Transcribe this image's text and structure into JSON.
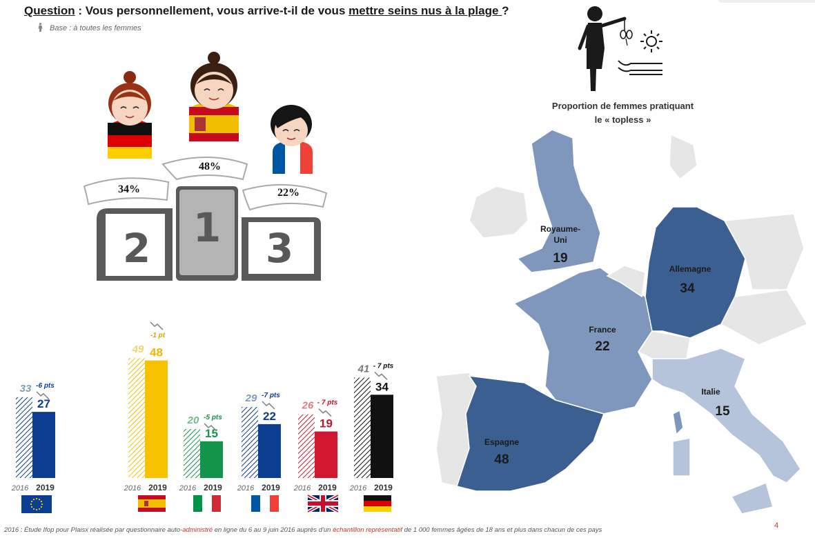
{
  "question": {
    "label": "Question",
    "text_part1": " : Vous personnellement, vous arrive-t-il de vous ",
    "text_underlined": "mettre seins nus à la plage ",
    "text_end": "?"
  },
  "base": "Base : à toutes les femmes",
  "podium": [
    {
      "rank": "1",
      "value": "48%",
      "country": "Espagne",
      "flag": "spain-flag"
    },
    {
      "rank": "2",
      "value": "34%",
      "country": "Allemagne",
      "flag": "germany-flag"
    },
    {
      "rank": "3",
      "value": "22%",
      "country": "France",
      "flag": "france-flag"
    }
  ],
  "map": {
    "title_line1": "Proportion de femmes pratiquant",
    "title_line2": "le « topless »",
    "countries": [
      {
        "name_line1": "Royaume-",
        "name_line2": "Uni",
        "value": "19",
        "color": "#7f97bd"
      },
      {
        "name": "Allemagne",
        "value": "34",
        "color": "#3b5f91"
      },
      {
        "name": "France",
        "value": "22",
        "color": "#7f97bd"
      },
      {
        "name": "Italie",
        "value": "15",
        "color": "#b6c4db"
      },
      {
        "name": "Espagne",
        "value": "48",
        "color": "#3b5f91"
      }
    ]
  },
  "chart_data": {
    "type": "bar",
    "categories": [
      "Europe",
      "Espagne",
      "Italie",
      "France",
      "Royaume-Uni",
      "Allemagne"
    ],
    "x_labels": [
      "2016",
      "2019"
    ],
    "series": [
      {
        "name": "2016",
        "values": [
          33,
          49,
          20,
          29,
          26,
          41
        ]
      },
      {
        "name": "2019",
        "values": [
          27,
          48,
          15,
          22,
          19,
          34
        ]
      }
    ],
    "deltas": [
      "-6 pts",
      "-1 pt",
      "-5 pts",
      "-7 pts",
      "- 7 pts",
      "- 7 pts"
    ],
    "colors": [
      "#0b3d91",
      "#f7c300",
      "#13944a",
      "#0b3d91",
      "#d0172f",
      "#111111"
    ],
    "label_colors_2016": [
      "#7f9abf",
      "#f2d36b",
      "#6cbf8a",
      "#7f9abf",
      "#e07a85",
      "#777777"
    ],
    "flags": [
      "eu-flag",
      "spain-flag",
      "italy-flag",
      "france-flag",
      "uk-flag",
      "germany-flag"
    ],
    "ylim": [
      0,
      60
    ]
  },
  "footnote": {
    "part1": "2016 : Étude Ifop pour Plaisx réalisée par questionnaire auto-",
    "part2": "administré",
    "part3": " en ligne du 6 au 9 juin 2016 auprès d'un ",
    "part4": "échantillon représentatif",
    "part5": " de 1 000 femmes âgées de 18 ans et plus dans chacun de ces pays"
  },
  "page_number": "4"
}
